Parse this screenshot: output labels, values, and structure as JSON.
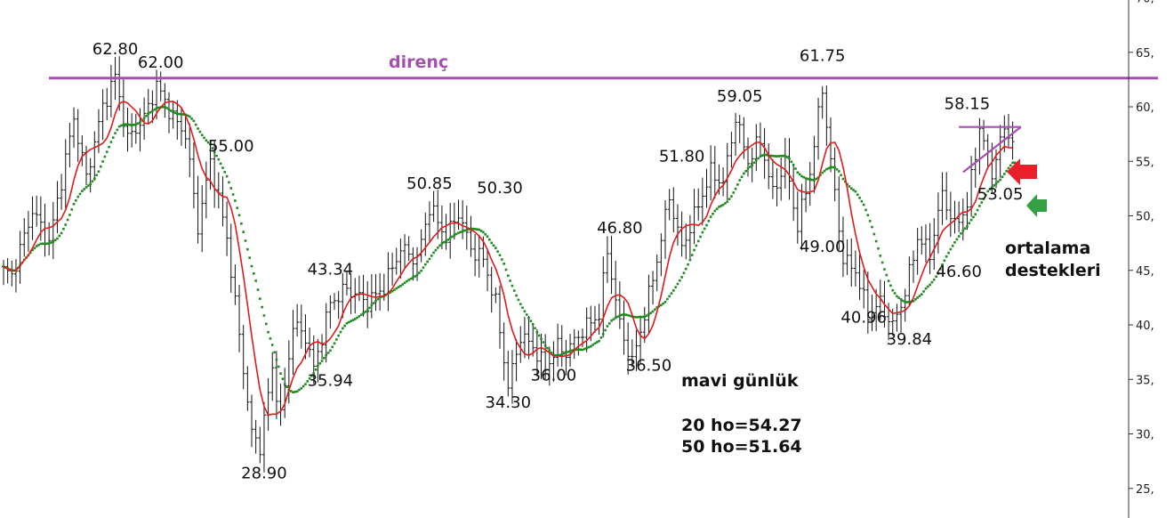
{
  "chart_data": {
    "type": "line",
    "title": "",
    "xlabel": "",
    "ylabel": "",
    "ylim": [
      22.5,
      70
    ],
    "y_ticks": [
      "25,",
      "30,",
      "35,",
      "40,",
      "45,",
      "50,",
      "55,",
      "60,",
      "65,",
      "70,"
    ],
    "y_axis_side": "right",
    "n_bars": 180,
    "grid": false,
    "legend": "none",
    "pivots": [
      {
        "i": 0,
        "v": 45
      },
      {
        "i": 2,
        "v": 44.5
      },
      {
        "i": 7,
        "v": 50.5
      },
      {
        "i": 11,
        "v": 47.5
      },
      {
        "i": 17,
        "v": 59
      },
      {
        "i": 20,
        "v": 53.5
      },
      {
        "i": 24,
        "v": 60
      },
      {
        "i": 27,
        "v": 62.8
      },
      {
        "i": 30,
        "v": 57
      },
      {
        "i": 34,
        "v": 59
      },
      {
        "i": 37,
        "v": 62
      },
      {
        "i": 41,
        "v": 59
      },
      {
        "i": 44,
        "v": 57.5
      },
      {
        "i": 47,
        "v": 49
      },
      {
        "i": 50,
        "v": 55
      },
      {
        "i": 54,
        "v": 48
      },
      {
        "i": 56,
        "v": 42
      },
      {
        "i": 58,
        "v": 36
      },
      {
        "i": 60,
        "v": 30
      },
      {
        "i": 62,
        "v": 28.9
      },
      {
        "i": 65,
        "v": 36
      },
      {
        "i": 67,
        "v": 31.5
      },
      {
        "i": 70,
        "v": 40
      },
      {
        "i": 73,
        "v": 39
      },
      {
        "i": 75,
        "v": 35.94
      },
      {
        "i": 79,
        "v": 42
      },
      {
        "i": 83,
        "v": 43.34
      },
      {
        "i": 88,
        "v": 42
      },
      {
        "i": 92,
        "v": 43.5
      },
      {
        "i": 96,
        "v": 47
      },
      {
        "i": 100,
        "v": 46
      },
      {
        "i": 103,
        "v": 50.85
      },
      {
        "i": 107,
        "v": 48
      },
      {
        "i": 110,
        "v": 50.3
      },
      {
        "i": 113,
        "v": 47
      },
      {
        "i": 116,
        "v": 46
      },
      {
        "i": 119,
        "v": 42
      },
      {
        "i": 122,
        "v": 34.3
      },
      {
        "i": 125,
        "v": 39
      },
      {
        "i": 128,
        "v": 38
      },
      {
        "i": 131,
        "v": 36
      },
      {
        "i": 134,
        "v": 38
      },
      {
        "i": 136,
        "v": 37.5
      },
      {
        "i": 140,
        "v": 39.5
      },
      {
        "i": 144,
        "v": 41
      },
      {
        "i": 146,
        "v": 46.8
      },
      {
        "i": 149,
        "v": 40
      },
      {
        "i": 152,
        "v": 36.5
      },
      {
        "i": 155,
        "v": 41
      },
      {
        "i": 158,
        "v": 46
      },
      {
        "i": 161,
        "v": 51.8
      },
      {
        "i": 164,
        "v": 47
      },
      {
        "i": 168,
        "v": 51
      },
      {
        "i": 171,
        "v": 54
      },
      {
        "i": 174,
        "v": 53
      },
      {
        "i": 177,
        "v": 59.05
      },
      {
        "i": 180,
        "v": 55
      }
    ],
    "pivots_extra": [
      {
        "i": 180,
        "v": 55
      },
      {
        "i": 183,
        "v": 57
      },
      {
        "i": 186,
        "v": 52
      },
      {
        "i": 189,
        "v": 55
      },
      {
        "i": 192,
        "v": 49
      },
      {
        "i": 195,
        "v": 54
      },
      {
        "i": 198,
        "v": 61.75
      },
      {
        "i": 200,
        "v": 55
      },
      {
        "i": 203,
        "v": 46
      },
      {
        "i": 206,
        "v": 45
      },
      {
        "i": 209,
        "v": 40.96
      },
      {
        "i": 212,
        "v": 42
      },
      {
        "i": 215,
        "v": 39.84
      },
      {
        "i": 218,
        "v": 43
      },
      {
        "i": 221,
        "v": 48
      },
      {
        "i": 224,
        "v": 46.6
      },
      {
        "i": 227,
        "v": 52
      },
      {
        "i": 230,
        "v": 49
      },
      {
        "i": 233,
        "v": 51
      },
      {
        "i": 236,
        "v": 58.15
      },
      {
        "i": 239,
        "v": 54
      },
      {
        "i": 242,
        "v": 58
      },
      {
        "i": 244,
        "v": 57
      }
    ],
    "series": [
      {
        "name": "",
        "role": "price",
        "color": "#111111"
      },
      {
        "name": "",
        "role": "ma20",
        "color": "#e21a1a"
      },
      {
        "name": "",
        "role": "ma50",
        "color": "#1f8a1f"
      }
    ],
    "resistance_level": 62.8,
    "trend_lines": [
      {
        "from": {
          "i": 231,
          "v": 58.15
        },
        "to": {
          "i": 246,
          "v": 58.15
        }
      },
      {
        "from": {
          "i": 232,
          "v": 54
        },
        "to": {
          "i": 246,
          "v": 58.15
        }
      }
    ],
    "price_labels": [
      {
        "text": "62.80",
        "i": 27,
        "v": 64.8
      },
      {
        "text": "62.00",
        "i": 38,
        "v": 63.6
      },
      {
        "text": "55.00",
        "i": 55,
        "v": 55.9
      },
      {
        "text": "43.34",
        "i": 79,
        "v": 44.6
      },
      {
        "text": "35.94",
        "i": 79,
        "v": 34.4
      },
      {
        "text": "28.90",
        "i": 63,
        "v": 25.9
      },
      {
        "text": "50.85",
        "i": 103,
        "v": 52.5
      },
      {
        "text": "50.30",
        "i": 120,
        "v": 52.1
      },
      {
        "text": "34.30",
        "i": 122,
        "v": 32.4
      },
      {
        "text": "36.00",
        "i": 133,
        "v": 34.9
      },
      {
        "text": "46.80",
        "i": 149,
        "v": 48.4
      },
      {
        "text": "36.50",
        "i": 156,
        "v": 35.8
      },
      {
        "text": "51.80",
        "i": 164,
        "v": 55.0
      },
      {
        "text": "59.05",
        "i": 178,
        "v": 60.5
      },
      {
        "text": "61.75",
        "i": 198,
        "v": 64.2
      },
      {
        "text": "49.00",
        "i": 198,
        "v": 46.7
      },
      {
        "text": "40.96",
        "i": 208,
        "v": 40.2
      },
      {
        "text": "39.84",
        "i": 219,
        "v": 38.2
      },
      {
        "text": "46.60",
        "i": 231,
        "v": 44.4
      },
      {
        "text": "58.15",
        "i": 233,
        "v": 59.8
      },
      {
        "text": "53.05",
        "i": 241,
        "v": 51.5
      }
    ]
  },
  "annotations": {
    "resistance_label": "direnç",
    "daily_note": "mavi günlük",
    "ma20_note": "20 ho=54.27",
    "ma50_note": "50 ho=51.64",
    "support_note_line1": "ortalama",
    "support_note_line2": "destekleri"
  },
  "colors": {
    "resistance": "#a550b0",
    "price": "#111111",
    "ma20": "#e21a1a",
    "ma50": "#1f8a1f",
    "arrow_red": "#e8202a",
    "arrow_green": "#34a043"
  }
}
